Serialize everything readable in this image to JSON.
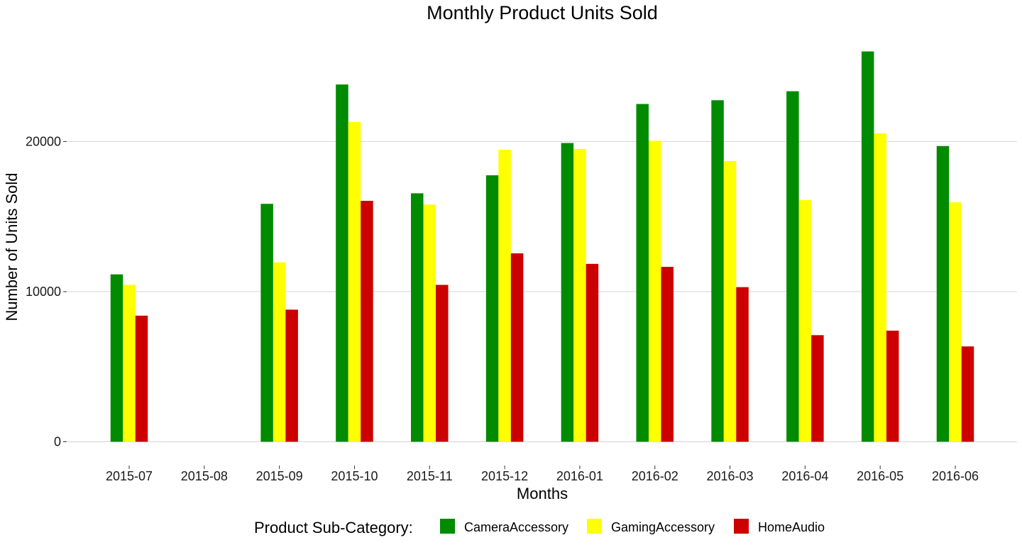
{
  "chart_data": {
    "type": "bar",
    "title": "Monthly Product Units Sold",
    "xlabel": "Months",
    "ylabel": "Number of Units Sold",
    "categories": [
      "2015-07",
      "2015-08",
      "2015-09",
      "2015-10",
      "2015-11",
      "2015-12",
      "2016-01",
      "2016-02",
      "2016-03",
      "2016-04",
      "2016-05",
      "2016-06"
    ],
    "series": [
      {
        "name": "CameraAccessory",
        "color": "#008b00",
        "values": [
          11150,
          0,
          15850,
          23800,
          16550,
          17750,
          19900,
          22500,
          22750,
          23350,
          26000,
          19700
        ]
      },
      {
        "name": "GamingAccessory",
        "color": "#ffff00",
        "values": [
          10450,
          0,
          11950,
          21300,
          15800,
          19450,
          19500,
          20050,
          18700,
          16100,
          20550,
          15950
        ]
      },
      {
        "name": "HomeAudio",
        "color": "#cd0000",
        "values": [
          8400,
          0,
          8800,
          16050,
          10450,
          12550,
          11850,
          11650,
          10300,
          7100,
          7400,
          6350
        ]
      }
    ],
    "yticks": [
      0,
      10000,
      20000
    ],
    "ytick_labels": [
      "0",
      "10000",
      "20000"
    ],
    "ylim": [
      -1300,
      27300
    ],
    "grid": "horizontal major",
    "legend": {
      "title": "Product Sub-Category:",
      "position": "bottom"
    }
  }
}
